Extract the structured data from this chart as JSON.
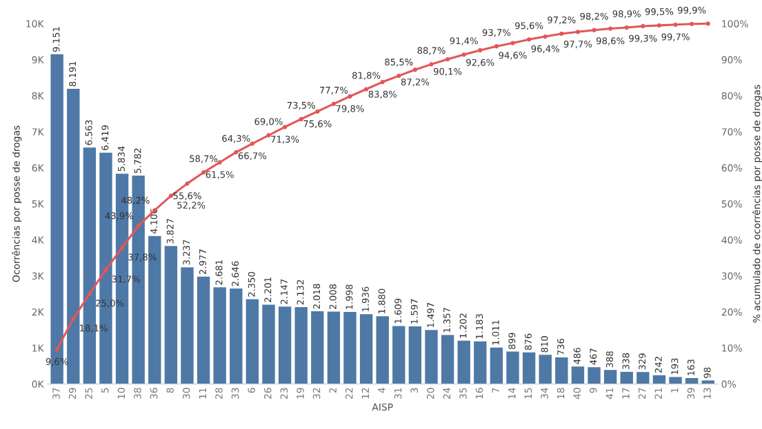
{
  "chart_data": {
    "type": "bar",
    "xlabel": "AISP",
    "ylabel": "Ocorrências por posse de drogas",
    "y2label": "% acumulado de ocorrências por posse de drogas",
    "categories": [
      "37",
      "29",
      "25",
      "5",
      "10",
      "38",
      "36",
      "8",
      "30",
      "11",
      "28",
      "33",
      "6",
      "26",
      "23",
      "19",
      "32",
      "2",
      "22",
      "12",
      "4",
      "31",
      "3",
      "20",
      "24",
      "35",
      "16",
      "7",
      "14",
      "15",
      "34",
      "18",
      "40",
      "9",
      "41",
      "17",
      "27",
      "21",
      "1",
      "39",
      "13"
    ],
    "series": [
      {
        "color": "#4e79a7",
        "values": [
          9151,
          8191,
          6563,
          6419,
          5834,
          5782,
          4106,
          3827,
          3237,
          2977,
          2681,
          2646,
          2350,
          2201,
          2147,
          2132,
          2018,
          2008,
          1998,
          1936,
          1880,
          1609,
          1597,
          1497,
          1357,
          1202,
          1183,
          1011,
          899,
          876,
          810,
          736,
          486,
          467,
          388,
          338,
          329,
          242,
          193,
          163,
          98
        ],
        "value_labels": [
          "9.151",
          "8.191",
          "6.563",
          "6.419",
          "5.834",
          "5.782",
          "4.106",
          "3.827",
          "3.237",
          "2.977",
          "2.681",
          "2.646",
          "2.350",
          "2.201",
          "2.147",
          "2.132",
          "2.018",
          "2.008",
          "1.998",
          "1.936",
          "1.880",
          "1.609",
          "1.597",
          "1.497",
          "1.357",
          "1.202",
          "1.183",
          "1.011",
          "899",
          "876",
          "810",
          "736",
          "486",
          "467",
          "388",
          "338",
          "329",
          "242",
          "193",
          "163",
          "98"
        ]
      },
      {
        "type": "line",
        "axis": "y2",
        "color": "#e15759",
        "marker": "circle",
        "values": [
          9.6,
          18.1,
          25.0,
          31.7,
          37.8,
          43.9,
          48.2,
          52.2,
          55.6,
          58.7,
          61.5,
          64.3,
          66.7,
          69.0,
          71.3,
          73.5,
          75.6,
          77.7,
          79.8,
          81.8,
          83.8,
          85.5,
          87.2,
          88.7,
          90.1,
          91.4,
          92.6,
          93.7,
          94.6,
          95.6,
          96.4,
          97.2,
          97.7,
          98.2,
          98.6,
          98.9,
          99.3,
          99.5,
          99.7,
          99.9,
          100
        ],
        "value_labels": [
          "9,6%",
          "18,1%",
          "25,0%",
          "31,7%",
          "37,8%",
          "43,9%",
          "48,2%",
          "52,2%",
          "55,6%",
          "58,7%",
          "61,5%",
          "64,3%",
          "66,7%",
          "69,0%",
          "71,3%",
          "73,5%",
          "75,6%",
          "77,7%",
          "79,8%",
          "81,8%",
          "83,8%",
          "85,5%",
          "87,2%",
          "88,7%",
          "90,1%",
          "91,4%",
          "92,6%",
          "93,7%",
          "94,6%",
          "95,6%",
          "96,4%",
          "97,2%",
          "97,7%",
          "98,2%",
          "98,6%",
          "98,9%",
          "99,3%",
          "99,5%",
          "99,7%",
          "99,9%",
          null
        ]
      }
    ],
    "ylim": [
      0,
      10000
    ],
    "yticks": [
      {
        "value": 0,
        "label": "0K"
      },
      {
        "value": 1000,
        "label": "1K"
      },
      {
        "value": 2000,
        "label": "2K"
      },
      {
        "value": 3000,
        "label": "3K"
      },
      {
        "value": 4000,
        "label": "4K"
      },
      {
        "value": 5000,
        "label": "5K"
      },
      {
        "value": 6000,
        "label": "6K"
      },
      {
        "value": 7000,
        "label": "7K"
      },
      {
        "value": 8000,
        "label": "8K"
      },
      {
        "value": 9000,
        "label": "9K"
      },
      {
        "value": 10000,
        "label": "10K"
      }
    ],
    "y2lim": [
      0,
      100
    ],
    "y2ticks": [
      {
        "value": 0,
        "label": "0%"
      },
      {
        "value": 10,
        "label": "10%"
      },
      {
        "value": 20,
        "label": "20%"
      },
      {
        "value": 30,
        "label": "30%"
      },
      {
        "value": 40,
        "label": "40%"
      },
      {
        "value": 50,
        "label": "50%"
      },
      {
        "value": 60,
        "label": "60%"
      },
      {
        "value": 70,
        "label": "70%"
      },
      {
        "value": 80,
        "label": "80%"
      },
      {
        "value": 90,
        "label": "90%"
      },
      {
        "value": 100,
        "label": "100%"
      }
    ],
    "grid": false,
    "legend": false
  }
}
